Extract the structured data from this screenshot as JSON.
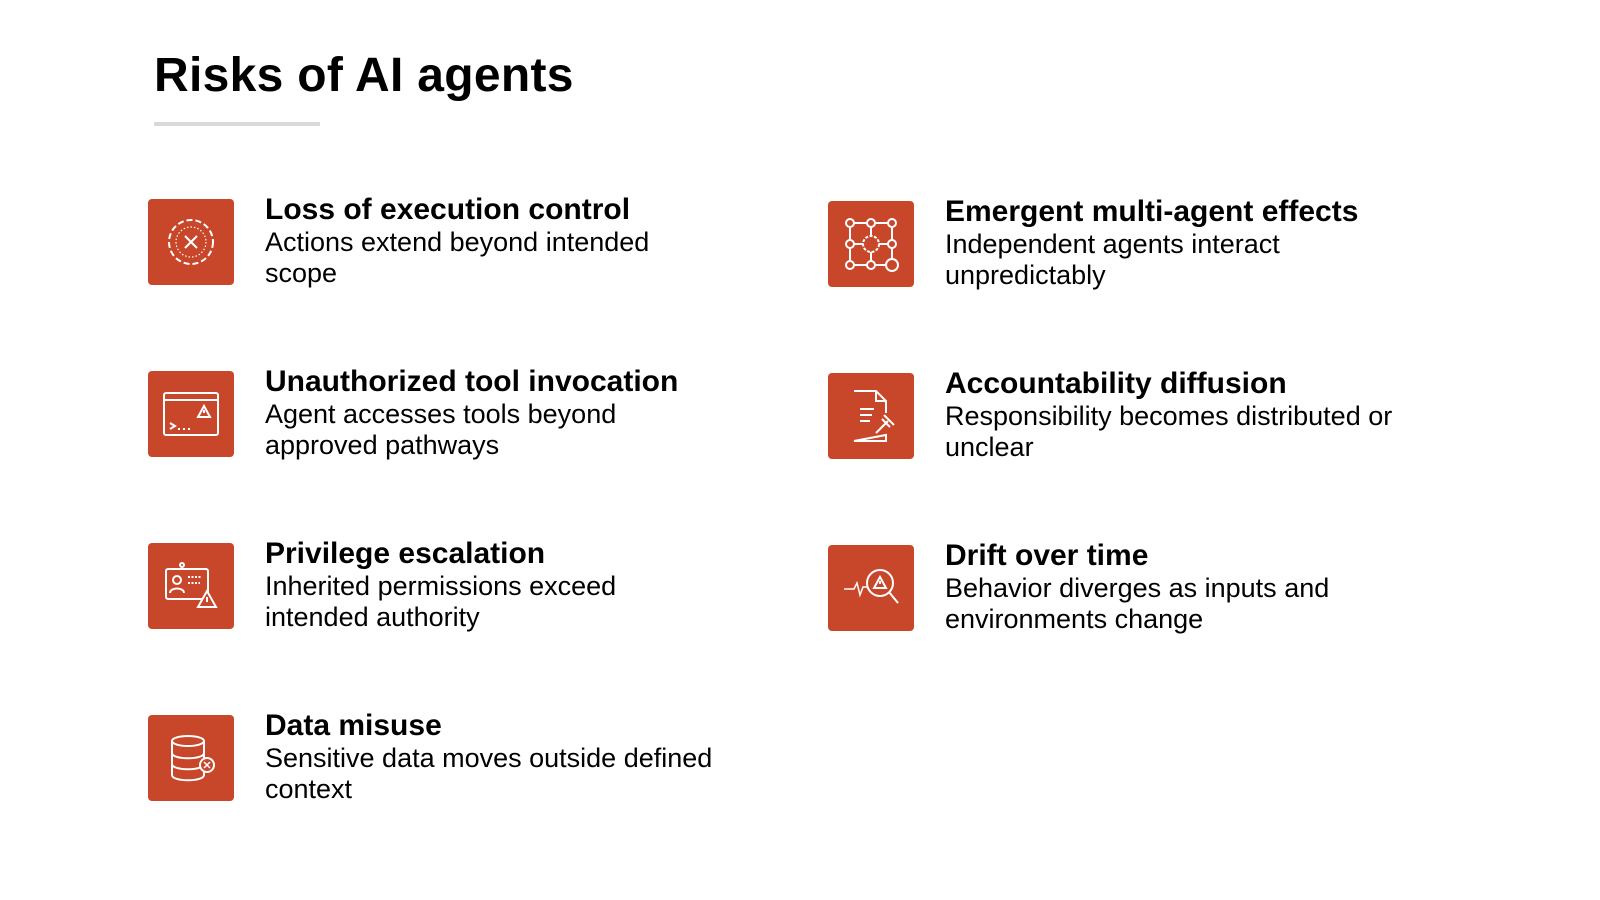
{
  "title": "Risks of AI agents",
  "accent_color": "#C8472A",
  "risks": [
    {
      "heading": "Loss of execution control",
      "description": "Actions extend beyond intended scope",
      "icon": "gear-x-icon"
    },
    {
      "heading": "Emergent multi-agent effects",
      "description": "Independent agents interact unpredictably",
      "icon": "network-nodes-icon"
    },
    {
      "heading": "Unauthorized tool invocation",
      "description": "Agent accesses tools beyond approved pathways",
      "icon": "terminal-warning-icon"
    },
    {
      "heading": "Accountability diffusion",
      "description": "Responsibility becomes distributed or unclear",
      "icon": "document-gavel-icon"
    },
    {
      "heading": "Privilege escalation",
      "description": "Inherited permissions exceed intended authority",
      "icon": "id-card-warning-icon"
    },
    {
      "heading": "Drift over time",
      "description": "Behavior diverges as inputs and environments change",
      "icon": "magnifier-warning-icon"
    },
    {
      "heading": "Data misuse",
      "description": "Sensitive data moves outside defined context",
      "icon": "database-x-icon"
    }
  ]
}
